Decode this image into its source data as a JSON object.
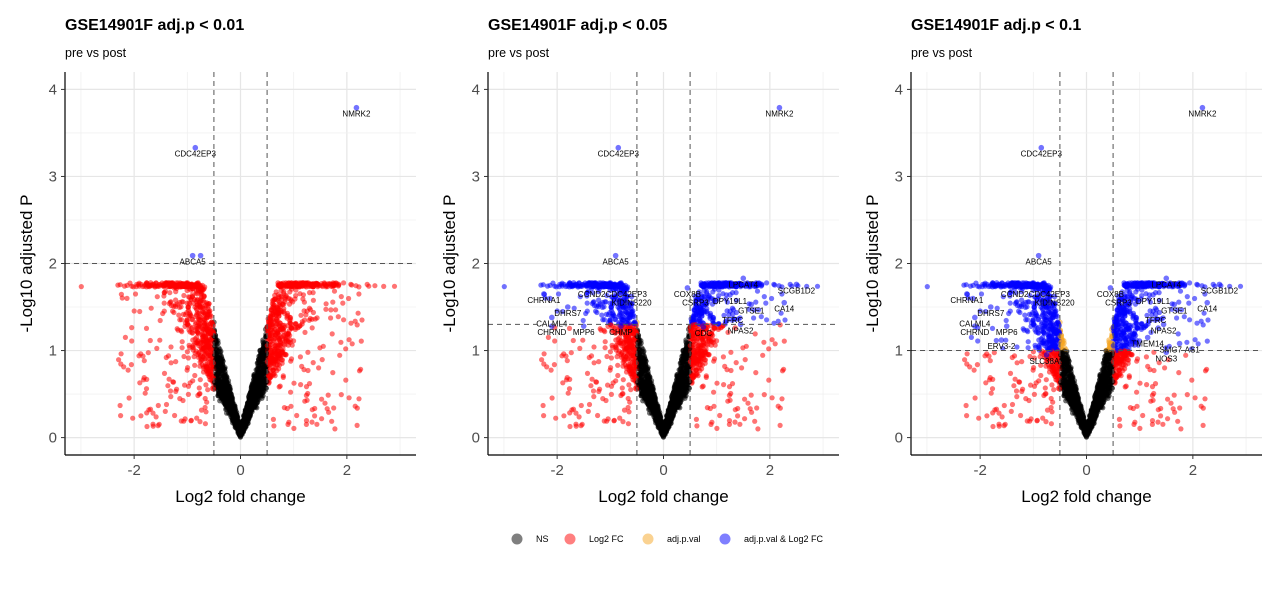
{
  "chart_data": [
    {
      "type": "scatter",
      "title": "GSE14901F adj.p < 0.01",
      "subtitle": "pre vs post",
      "xlabel": "Log2 fold change",
      "ylabel": "-Log10 adjusted P",
      "xlim": [
        -3.3,
        3.3
      ],
      "ylim": [
        -0.2,
        4.2
      ],
      "xticks": [
        "-2",
        "0",
        "2"
      ],
      "yticks": [
        "0",
        "1",
        "2",
        "3",
        "4"
      ],
      "fc_cutoff": 0.5,
      "p_cutoff_line": 2.0,
      "grid": true,
      "highlighted_points": [
        {
          "label": "NMRK2",
          "x": 2.18,
          "y": 3.79
        },
        {
          "label": "CDC42EP3",
          "x": -0.85,
          "y": 3.33
        },
        {
          "label": "ABCA5",
          "x": -0.9,
          "y": 2.09
        },
        {
          "label": "",
          "x": -0.75,
          "y": 2.09
        }
      ]
    },
    {
      "type": "scatter",
      "title": "GSE14901F adj.p < 0.05",
      "subtitle": "pre vs post",
      "xlabel": "Log2 fold change",
      "ylabel": "-Log10 adjusted P",
      "xlim": [
        -3.3,
        3.3
      ],
      "ylim": [
        -0.2,
        4.2
      ],
      "xticks": [
        "-2",
        "0",
        "2"
      ],
      "yticks": [
        "0",
        "1",
        "2",
        "3",
        "4"
      ],
      "fc_cutoff": 0.5,
      "p_cutoff_line": 1.3,
      "grid": true,
      "highlighted_points": [
        {
          "label": "NMRK2",
          "x": 2.18,
          "y": 3.79
        },
        {
          "label": "CDC42EP3",
          "x": -0.85,
          "y": 3.33
        },
        {
          "label": "ABCA5",
          "x": -0.9,
          "y": 2.09
        },
        {
          "label": "LPCAT4",
          "x": 1.5,
          "y": 1.83
        },
        {
          "label": "SCGB1D2",
          "x": 2.5,
          "y": 1.76
        },
        {
          "label": "CA14",
          "x": 2.27,
          "y": 1.55
        },
        {
          "label": "GTSE1",
          "x": 1.65,
          "y": 1.53
        },
        {
          "label": "DPY19L1",
          "x": 1.25,
          "y": 1.64
        },
        {
          "label": "CHRNA1",
          "x": -2.25,
          "y": 1.65
        },
        {
          "label": "CCND2",
          "x": -1.35,
          "y": 1.72
        },
        {
          "label": "CDC42EP3",
          "x": -0.7,
          "y": 1.72
        },
        {
          "label": "KIDINS220",
          "x": -0.6,
          "y": 1.62
        },
        {
          "label": "DHRS7",
          "x": -1.8,
          "y": 1.5
        },
        {
          "label": "CALML4",
          "x": -2.1,
          "y": 1.38
        },
        {
          "label": "CHRND",
          "x": -2.1,
          "y": 1.28
        },
        {
          "label": "MPP6",
          "x": -1.5,
          "y": 1.28
        },
        {
          "label": "CHMP",
          "x": -0.8,
          "y": 1.28
        },
        {
          "label": "COX8B",
          "x": 0.45,
          "y": 1.72
        },
        {
          "label": "CSRP3",
          "x": 0.6,
          "y": 1.62
        },
        {
          "label": "TFRC",
          "x": 1.3,
          "y": 1.42
        },
        {
          "label": "NPAS2",
          "x": 1.45,
          "y": 1.3
        },
        {
          "label": "CDC",
          "x": 0.75,
          "y": 1.27
        }
      ]
    },
    {
      "type": "scatter",
      "title": "GSE14901F adj.p < 0.1",
      "subtitle": "pre vs post",
      "xlabel": "Log2 fold change",
      "ylabel": "-Log10 adjusted P",
      "xlim": [
        -3.3,
        3.3
      ],
      "ylim": [
        -0.2,
        4.2
      ],
      "xticks": [
        "-2",
        "0",
        "2"
      ],
      "yticks": [
        "0",
        "1",
        "2",
        "3",
        "4"
      ],
      "fc_cutoff": 0.5,
      "p_cutoff_line": 1.0,
      "grid": true,
      "highlighted_points": [
        {
          "label": "NMRK2",
          "x": 2.18,
          "y": 3.79
        },
        {
          "label": "CDC42EP3",
          "x": -0.85,
          "y": 3.33
        },
        {
          "label": "ABCA5",
          "x": -0.9,
          "y": 2.09
        },
        {
          "label": "LPCAT4",
          "x": 1.5,
          "y": 1.83
        },
        {
          "label": "SCGB1D2",
          "x": 2.5,
          "y": 1.76
        },
        {
          "label": "CA14",
          "x": 2.27,
          "y": 1.55
        },
        {
          "label": "GTSE1",
          "x": 1.65,
          "y": 1.53
        },
        {
          "label": "DPY19L1",
          "x": 1.25,
          "y": 1.64
        },
        {
          "label": "CHRNA1",
          "x": -2.25,
          "y": 1.65
        },
        {
          "label": "CCND2",
          "x": -1.35,
          "y": 1.72
        },
        {
          "label": "CDC42EP3",
          "x": -0.7,
          "y": 1.72
        },
        {
          "label": "KIDINS220",
          "x": -0.6,
          "y": 1.62
        },
        {
          "label": "DHRS7",
          "x": -1.8,
          "y": 1.5
        },
        {
          "label": "CALML4",
          "x": -2.1,
          "y": 1.38
        },
        {
          "label": "CHRND",
          "x": -2.1,
          "y": 1.28
        },
        {
          "label": "MPP6",
          "x": -1.5,
          "y": 1.28
        },
        {
          "label": "ERV3-2",
          "x": -1.6,
          "y": 1.12
        },
        {
          "label": "SLC38A6",
          "x": -0.75,
          "y": 0.95
        },
        {
          "label": "COX8B",
          "x": 0.45,
          "y": 1.72
        },
        {
          "label": "CSRP3",
          "x": 0.6,
          "y": 1.62
        },
        {
          "label": "TFRC",
          "x": 1.3,
          "y": 1.42
        },
        {
          "label": "NPAS2",
          "x": 1.45,
          "y": 1.3
        },
        {
          "label": "SMG7-AS1",
          "x": 1.75,
          "y": 1.08
        },
        {
          "label": "NOS3",
          "x": 1.5,
          "y": 0.98
        },
        {
          "label": "TMEM14",
          "x": 1.15,
          "y": 1.15
        }
      ]
    }
  ],
  "legend": {
    "placement": "bottom",
    "items": [
      {
        "label": "NS",
        "color": "#000000"
      },
      {
        "label": "Log2 FC",
        "color": "#ff0000"
      },
      {
        "label": "adj.p.val",
        "color": "#f5a623"
      },
      {
        "label": "adj.p.val & Log2 FC",
        "color": "#0000ff"
      }
    ]
  },
  "colors": {
    "ns": "#000000",
    "fc": "#ff0000",
    "p": "#f5a623",
    "both": "#0000ff"
  }
}
